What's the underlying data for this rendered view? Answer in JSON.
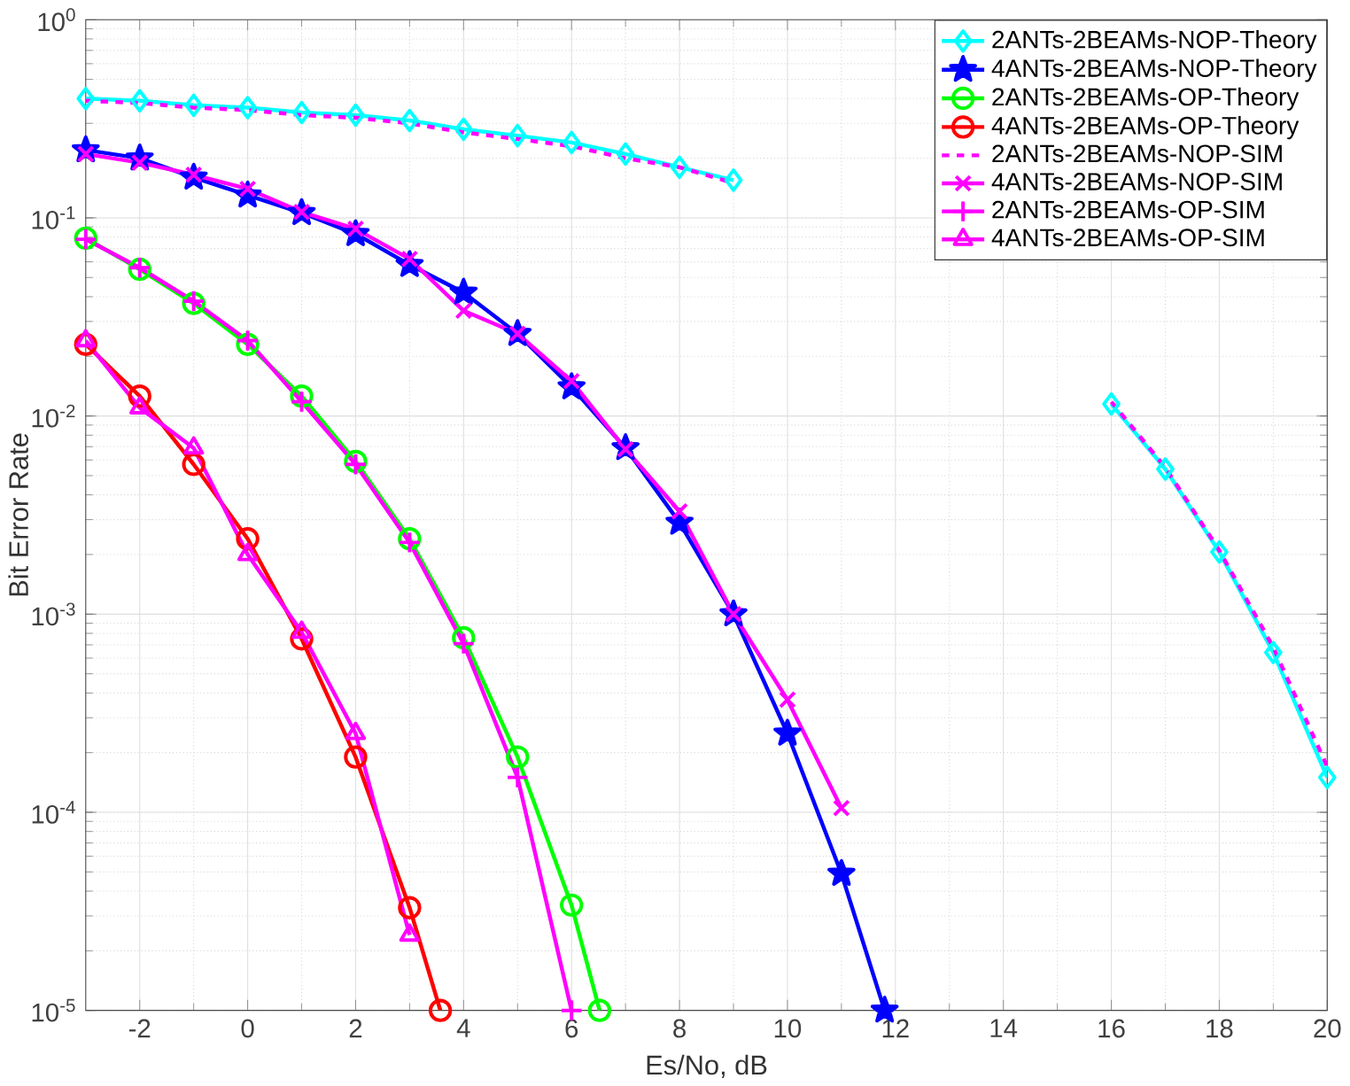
{
  "chart_data": {
    "type": "line",
    "xlabel": "Es/No, dB",
    "ylabel": "Bit Error Rate",
    "log": "y",
    "grid": true,
    "legend": "top right",
    "xlim": [
      -3,
      20
    ],
    "xticks": [
      -2,
      0,
      2,
      4,
      6,
      8,
      10,
      12,
      14,
      16,
      18,
      20
    ],
    "ylim": [
      1e-05,
      1
    ],
    "yticks": [
      {
        "value": 1e-05,
        "label": "10$^{-5}$"
      },
      {
        "value": 0.0001,
        "label": "10$^{-4}$"
      },
      {
        "value": 0.001,
        "label": "10$^{-3}$"
      },
      {
        "value": 0.01,
        "label": "10$^{-2}$"
      },
      {
        "value": 0.1,
        "label": "10$^{-1}$"
      },
      {
        "value": 1,
        "label": "10$^{0}$"
      }
    ],
    "series": [
      {
        "name": "2ANTs-2BEAMs-NOP-Theory",
        "color": "#00ffff",
        "marker": "diamond",
        "line_style": "solid",
        "x": [
          -3,
          -2,
          -1,
          0,
          1,
          2,
          3,
          4,
          5,
          6,
          7,
          8,
          9,
          10,
          11,
          12,
          13,
          14,
          15,
          16,
          17,
          18,
          19,
          20
        ],
        "values": [
          0.4,
          0.39,
          0.37,
          0.36,
          0.34,
          0.33,
          0.31,
          0.28,
          0.26,
          0.24,
          0.21,
          0.18,
          0.155,
          null,
          null,
          null,
          null,
          null,
          null,
          0.0115,
          0.0054,
          0.00206,
          0.00064,
          0.00015
        ]
      },
      {
        "name": "4ANTs-2BEAMs-NOP-Theory",
        "color": "#0000ff",
        "marker": "star",
        "line_style": "solid",
        "x": [
          -3,
          -2,
          -1,
          0,
          1,
          2,
          3,
          4,
          5,
          6,
          7,
          8,
          9,
          10,
          11,
          11.8
        ],
        "values": [
          0.22,
          0.2,
          0.16,
          0.13,
          0.106,
          0.083,
          0.058,
          0.042,
          0.026,
          0.014,
          0.0069,
          0.0029,
          0.001,
          0.00025,
          4.9e-05,
          1e-05
        ]
      },
      {
        "name": "2ANTs-2BEAMs-OP-Theory",
        "color": "#00ff00",
        "marker": "circle",
        "line_style": "solid",
        "x": [
          -3,
          -2,
          -1,
          0,
          1,
          2,
          3,
          4,
          5,
          6,
          6.52
        ],
        "values": [
          0.079,
          0.055,
          0.037,
          0.023,
          0.0126,
          0.0059,
          0.0024,
          0.00076,
          0.00019,
          3.4e-05,
          1e-05
        ]
      },
      {
        "name": "4ANTs-2BEAMs-OP-Theory",
        "color": "#ff0000",
        "marker": "circle",
        "line_style": "solid",
        "x": [
          -3,
          -2,
          -1,
          0,
          1,
          2,
          3,
          3.57
        ],
        "values": [
          0.023,
          0.0126,
          0.0057,
          0.0024,
          0.00075,
          0.00019,
          3.3e-05,
          1e-05
        ]
      },
      {
        "name": "2ANTs-2BEAMs-NOP-SIM",
        "color": "#ff00ff",
        "marker": "none",
        "line_style": "dashed",
        "x": [
          -3,
          -2,
          -1,
          0,
          1,
          2,
          3,
          4,
          5,
          6,
          7,
          8,
          9,
          10,
          11,
          12,
          13,
          14,
          15,
          16,
          17,
          18,
          19,
          20
        ],
        "values": [
          0.39,
          0.38,
          0.36,
          0.35,
          0.33,
          0.32,
          0.3,
          0.27,
          0.25,
          0.23,
          0.2,
          0.18,
          0.15,
          null,
          null,
          null,
          null,
          null,
          null,
          0.0118,
          0.0055,
          0.0021,
          0.00068,
          0.00017
        ]
      },
      {
        "name": "4ANTs-2BEAMs-NOP-SIM",
        "color": "#ff00ff",
        "marker": "cross",
        "line_style": "solid",
        "x": [
          -3,
          -2,
          -1,
          0,
          1,
          2,
          3,
          4,
          5,
          6,
          7,
          8,
          9,
          10,
          11
        ],
        "values": [
          0.21,
          0.19,
          0.165,
          0.14,
          0.107,
          0.088,
          0.062,
          0.034,
          0.026,
          0.015,
          0.0068,
          0.0033,
          0.001,
          0.00037,
          0.000105
        ]
      },
      {
        "name": "2ANTs-2BEAMs-OP-SIM",
        "color": "#ff00ff",
        "marker": "plus",
        "line_style": "solid",
        "x": [
          -3,
          -2,
          -1,
          0,
          1,
          2,
          3,
          4,
          5,
          6
        ],
        "values": [
          0.078,
          0.056,
          0.038,
          0.024,
          0.0118,
          0.0057,
          0.0023,
          0.00071,
          0.00015,
          1e-05
        ]
      },
      {
        "name": "4ANTs-2BEAMs-OP-SIM",
        "color": "#ff00ff",
        "marker": "triangle",
        "line_style": "solid",
        "x": [
          -3,
          -2,
          -1,
          0,
          1,
          2,
          3
        ],
        "values": [
          0.024,
          0.011,
          0.0069,
          0.002,
          0.00081,
          0.00025,
          2.4e-05
        ]
      }
    ]
  }
}
